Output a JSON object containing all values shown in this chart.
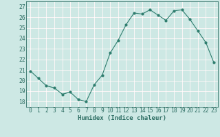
{
  "x": [
    0,
    1,
    2,
    3,
    4,
    5,
    6,
    7,
    8,
    9,
    10,
    11,
    12,
    13,
    14,
    15,
    16,
    17,
    18,
    19,
    20,
    21,
    22,
    23
  ],
  "y": [
    20.9,
    20.2,
    19.5,
    19.3,
    18.7,
    18.9,
    18.2,
    18.0,
    19.6,
    20.5,
    22.6,
    23.8,
    25.3,
    26.4,
    26.3,
    26.7,
    26.2,
    25.7,
    26.6,
    26.7,
    25.8,
    24.7,
    23.6,
    21.7
  ],
  "line_color": "#2e7d6e",
  "marker_color": "#2e7d6e",
  "bg_color": "#cde8e4",
  "grid_major_color": "#ffffff",
  "grid_minor_color": "#e8b8b8",
  "xlabel": "Humidex (Indice chaleur)",
  "ylim": [
    17.5,
    27.5
  ],
  "xlim": [
    -0.5,
    23.5
  ],
  "yticks": [
    18,
    19,
    20,
    21,
    22,
    23,
    24,
    25,
    26,
    27
  ],
  "xticks": [
    0,
    1,
    2,
    3,
    4,
    5,
    6,
    7,
    8,
    9,
    10,
    11,
    12,
    13,
    14,
    15,
    16,
    17,
    18,
    19,
    20,
    21,
    22,
    23
  ],
  "xtick_labels": [
    "0",
    "1",
    "2",
    "3",
    "4",
    "5",
    "6",
    "7",
    "8",
    "9",
    "10",
    "11",
    "12",
    "13",
    "14",
    "15",
    "16",
    "17",
    "18",
    "19",
    "20",
    "21",
    "22",
    "23"
  ],
  "ytick_labels": [
    "18",
    "19",
    "20",
    "21",
    "22",
    "23",
    "24",
    "25",
    "26",
    "27"
  ],
  "font_color": "#2e6e64",
  "label_fontsize": 6.5,
  "tick_fontsize": 5.8
}
